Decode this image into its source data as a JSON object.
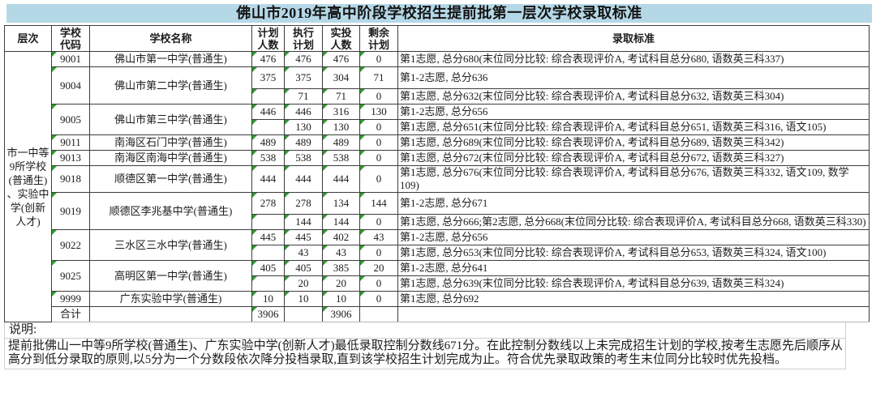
{
  "title": "佛山市2019年高中阶段学校招生提前批第一层次学校录取标准",
  "colors": {
    "title_bar_bg": "#b5d8e7",
    "indicator_green": "#2f9a2f",
    "table_border": "#3d3d3d",
    "notes_border": "#cfcfcf"
  },
  "table": {
    "headers": {
      "level": "层次",
      "code": "学校\n代码",
      "name": "学校名称",
      "planned": "计划\n人数",
      "executed": "执行\n计划",
      "actual": "实投\n人数",
      "remaining": "剩余\n计划",
      "standard": "录取标准"
    },
    "level_label": "市一中等\n9所学校\n(普通生)\n、实验中\n学(创新\n人才)",
    "rows": [
      {
        "code": "9001",
        "name": "佛山市第一中学(普通生)",
        "sub": [
          {
            "planned": "476",
            "executed": "476",
            "actual": "476",
            "remaining": "0",
            "standard": "第1志愿, 总分680(末位同分比较: 综合表现评价A, 考试科目总分680, 语数英三科337)"
          }
        ]
      },
      {
        "code": "9004",
        "name": "佛山市第二中学(普通生)",
        "sub": [
          {
            "planned": "375",
            "executed": "375",
            "actual": "304",
            "remaining": "71",
            "standard": "第1-2志愿, 总分636"
          },
          {
            "planned": "",
            "executed": "71",
            "actual": "71",
            "remaining": "0",
            "standard": "第1志愿, 总分632(末位同分比较: 综合表现评价A, 考试科目总分632, 语数英三科304)"
          }
        ]
      },
      {
        "code": "9005",
        "name": "佛山市第三中学(普通生)",
        "sub": [
          {
            "planned": "446",
            "executed": "446",
            "actual": "316",
            "remaining": "130",
            "standard": "第1-2志愿, 总分656"
          },
          {
            "planned": "",
            "executed": "130",
            "actual": "130",
            "remaining": "0",
            "standard": "第1志愿, 总分651(末位同分比较: 综合表现评价A, 考试科目总分651, 语数英三科316, 语文105)"
          }
        ]
      },
      {
        "code": "9011",
        "name": "南海区石门中学(普通生)",
        "sub": [
          {
            "planned": "489",
            "executed": "489",
            "actual": "489",
            "remaining": "0",
            "standard": "第1志愿, 总分689(末位同分比较: 综合表现评价A, 考试科目总分689, 语数英三科342)"
          }
        ]
      },
      {
        "code": "9013",
        "name": "南海区南海中学(普通生)",
        "sub": [
          {
            "planned": "538",
            "executed": "538",
            "actual": "538",
            "remaining": "0",
            "standard": "第1志愿, 总分672(末位同分比较: 综合表现评价A, 考试科目总分672, 语数英三科327)"
          }
        ]
      },
      {
        "code": "9018",
        "name": "顺德区第一中学(普通生)",
        "sub": [
          {
            "planned": "444",
            "executed": "444",
            "actual": "444",
            "remaining": "0",
            "standard": "第1志愿, 总分676(末位同分比较: 综合表现评价A, 考试科目总分676, 语数英三科332, 语文109, 数学109)"
          }
        ]
      },
      {
        "code": "9019",
        "name": "顺德区李兆基中学(普通生)",
        "sub": [
          {
            "planned": "278",
            "executed": "278",
            "actual": "134",
            "remaining": "144",
            "standard": "第1-2志愿, 总分671"
          },
          {
            "planned": "",
            "executed": "144",
            "actual": "144",
            "remaining": "0",
            "standard": "第1志愿, 总分666;第2志愿, 总分668(末位同分比较: 综合表现评价A, 考试科目总分668, 语数英三科330)"
          }
        ]
      },
      {
        "code": "9022",
        "name": "三水区三水中学(普通生)",
        "sub": [
          {
            "planned": "445",
            "executed": "445",
            "actual": "402",
            "remaining": "43",
            "standard": "第1-2志愿, 总分656"
          },
          {
            "planned": "",
            "executed": "43",
            "actual": "43",
            "remaining": "0",
            "standard": "第1志愿, 总分653(末位同分比较: 综合表现评价A, 考试科目总分653, 语数英三科324, 语文100)"
          }
        ]
      },
      {
        "code": "9025",
        "name": "高明区第一中学(普通生)",
        "sub": [
          {
            "planned": "405",
            "executed": "405",
            "actual": "385",
            "remaining": "20",
            "standard": "第1-2志愿, 总分641"
          },
          {
            "planned": "",
            "executed": "20",
            "actual": "20",
            "remaining": "0",
            "standard": "第1志愿, 总分639(末位同分比较: 综合表现评价A, 考试科目总分639, 语数英三科324)"
          }
        ]
      },
      {
        "code": "9999",
        "name": "广东实验中学(普通生)",
        "sub": [
          {
            "planned": "10",
            "executed": "10",
            "actual": "10",
            "remaining": "0",
            "standard": "第1志愿, 总分692"
          }
        ]
      }
    ],
    "total": {
      "label": "合计",
      "name": "",
      "planned": "3906",
      "executed": "",
      "actual": "3906",
      "remaining": "",
      "standard": ""
    }
  },
  "notes": {
    "label": "说明:",
    "text": "提前批佛山一中等9所学校(普通生)、广东实验中学(创新人才)最低录取控制分数线671分。在此控制分数线以上未完成招生计划的学校,按考生志愿先后顺序从高分到低分录取的原则,以5分为一个分数段依次降分投档录取,直到该学校招生计划完成为止。符合优先录取政策的考生末位同分比较时优先投档。"
  }
}
